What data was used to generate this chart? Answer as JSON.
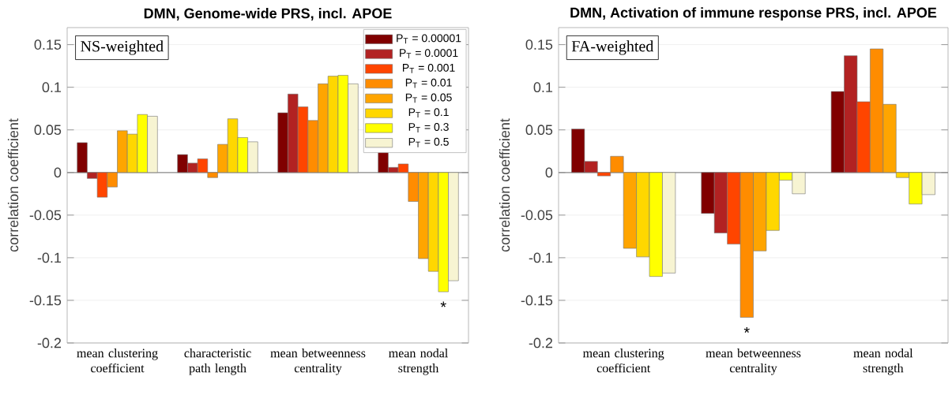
{
  "chart_data": [
    {
      "type": "bar",
      "title": "DMN, Genome-wide PRS, incl. APOE",
      "ylabel": "correlation coefficient",
      "categories": [
        "mean clustering coefficient",
        "characteristic path length",
        "mean betweenness centrality",
        "mean nodal strength"
      ],
      "series": [
        {
          "name": "P$_{T}$ = 0.00001",
          "color": "#800000",
          "values": [
            0.035,
            0.021,
            0.07,
            0.025
          ]
        },
        {
          "name": "P$_{T}$ = 0.0001",
          "color": "#b22222",
          "values": [
            -0.007,
            0.011,
            0.092,
            0.006
          ]
        },
        {
          "name": "P$_{T}$ = 0.001",
          "color": "#ff4500",
          "values": [
            -0.029,
            0.016,
            0.077,
            0.01
          ]
        },
        {
          "name": "P$_{T}$ = 0.01",
          "color": "#ff8c00",
          "values": [
            -0.017,
            -0.006,
            0.061,
            -0.034
          ]
        },
        {
          "name": "P$_{T}$ = 0.05",
          "color": "#ffa500",
          "values": [
            0.049,
            0.033,
            0.104,
            -0.101
          ]
        },
        {
          "name": "P$_{T}$ = 0.1",
          "color": "#ffd700",
          "values": [
            0.045,
            0.063,
            0.113,
            -0.116
          ]
        },
        {
          "name": "P$_{T}$ = 0.3",
          "color": "#ffff00",
          "values": [
            0.068,
            0.041,
            0.114,
            -0.14
          ]
        },
        {
          "name": "P$_{T}$ = 0.5",
          "color": "#f7f4d2",
          "values": [
            0.066,
            0.036,
            0.104,
            -0.127
          ]
        }
      ],
      "ylim": [
        -0.2,
        0.17
      ],
      "yticks": [
        -0.2,
        -0.15,
        -0.1,
        -0.05,
        0,
        0.05,
        0.1,
        0.15
      ],
      "grid": "y",
      "legend": "top right",
      "annotations": [
        "NS-weighted",
        "*"
      ]
    },
    {
      "type": "bar",
      "title": "DMN, Activation of immune response PRS, incl. APOE",
      "ylabel": "correlation coefficient",
      "categories": [
        "mean clustering coefficient",
        "mean betweenness centrality",
        "mean nodal strength"
      ],
      "series": [
        {
          "color": "#800000",
          "values": [
            0.051,
            -0.048,
            0.095
          ]
        },
        {
          "color": "#b22222",
          "values": [
            0.013,
            -0.071,
            0.137
          ]
        },
        {
          "color": "#ff4500",
          "values": [
            -0.004,
            -0.084,
            0.083
          ]
        },
        {
          "color": "#ff8c00",
          "values": [
            0.019,
            -0.17,
            0.145
          ]
        },
        {
          "color": "#ffa500",
          "values": [
            -0.089,
            -0.092,
            0.08
          ]
        },
        {
          "color": "#ffd700",
          "values": [
            -0.099,
            -0.068,
            -0.006
          ]
        },
        {
          "color": "#ffff00",
          "values": [
            -0.122,
            -0.009,
            -0.037
          ]
        },
        {
          "color": "#f7f4d2",
          "values": [
            -0.118,
            -0.025,
            -0.026
          ]
        }
      ],
      "ylim": [
        -0.2,
        0.17
      ],
      "yticks": [
        -0.2,
        -0.15,
        -0.1,
        -0.05,
        0,
        0.05,
        0.1,
        0.15
      ],
      "grid": "y",
      "annotations": [
        "FA-weighted",
        "*"
      ]
    }
  ]
}
